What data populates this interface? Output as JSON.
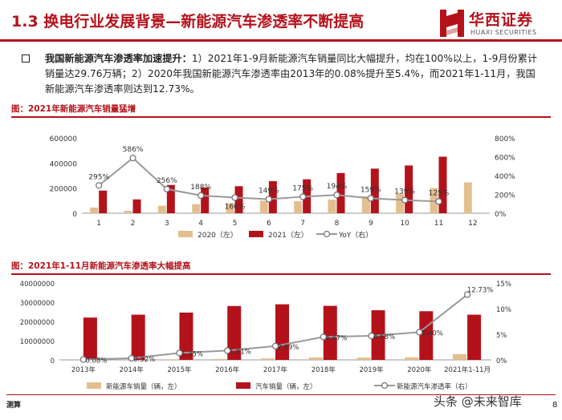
{
  "header": {
    "title": "1.3 换电行业发展背景—新能源汽车渗透率不断提高",
    "logo_cn": "华西证券",
    "logo_en": "HUAXI SECURITIES"
  },
  "bullet": {
    "bold": "我国新能源汽车渗透率加速提升：",
    "text": "1）2021年1-9月新能源汽车销量同比大幅提升，均在100%以上，1-9月份累计销量达29.76万辆；2）2020年我国新能源汽车渗透率由2013年的0.08%提升至5.4%，而2021年1-11月，我国新能源汽车渗透率则达到12.73%。"
  },
  "footer": {
    "source": "测算",
    "page": "8",
    "watermark": "头条 @未来智库"
  },
  "colors": {
    "brand_red": "#b4121b",
    "tan": "#e3bf8f",
    "gray_line": "#999999"
  },
  "chart_data": [
    {
      "type": "bar",
      "title": "图：2021年新能源汽车销量猛增",
      "categories": [
        "1",
        "2",
        "3",
        "4",
        "5",
        "6",
        "7",
        "8",
        "9",
        "10",
        "11",
        "12"
      ],
      "series": [
        {
          "name": "2020（左）",
          "kind": "bar",
          "color": "#e3bf8f",
          "values": [
            45000,
            19000,
            60000,
            72000,
            80000,
            100000,
            96000,
            108000,
            135000,
            158000,
            200000,
            245000
          ]
        },
        {
          "name": "2021（左）",
          "kind": "bar",
          "color": "#b4121b",
          "values": [
            180000,
            110000,
            225000,
            205000,
            215000,
            255000,
            270000,
            320000,
            355000,
            380000,
            450000,
            null
          ]
        },
        {
          "name": "YoY（右）",
          "kind": "line",
          "color": "#999999",
          "axis": "right",
          "values": [
            295,
            586,
            256,
            188,
            166,
            149,
            175,
            194,
            159,
            139,
            125,
            null
          ],
          "labels": [
            "295%",
            "586%",
            "256%",
            "188%",
            "166%",
            "149%",
            "175%",
            "194%",
            "159%",
            "139%",
            "125%",
            ""
          ]
        }
      ],
      "ylim_left": [
        0,
        600000
      ],
      "yticks_left": [
        "0",
        "200000",
        "400000",
        "600000"
      ],
      "ylim_right": [
        0,
        800
      ],
      "yticks_right": [
        "0%",
        "200%",
        "400%",
        "600%",
        "800%"
      ],
      "legend": "bottom"
    },
    {
      "type": "bar",
      "title": "图：2021年1-11月新能源汽车渗透率大幅提高",
      "categories": [
        "2013年",
        "2014年",
        "2015年",
        "2016年",
        "2017年",
        "2018年",
        "2019年",
        "2020年",
        "2021年1-11月"
      ],
      "series": [
        {
          "name": "新能源车销量（辆，左）",
          "kind": "bar",
          "color": "#e3bf8f",
          "values": [
            17600,
            75000,
            331000,
            507000,
            777000,
            1256000,
            1206000,
            1367000,
            2990000
          ]
        },
        {
          "name": "汽车销量（辆，左）",
          "kind": "bar",
          "color": "#b4121b",
          "values": [
            22000000,
            23500000,
            24600000,
            28000000,
            28900000,
            28100000,
            25800000,
            25300000,
            23500000
          ]
        },
        {
          "name": "新能源汽车渗透率（右）",
          "kind": "line",
          "color": "#999999",
          "axis": "right",
          "values": [
            0.08,
            0.32,
            1.35,
            1.81,
            2.69,
            4.47,
            4.68,
            5.4,
            12.73
          ],
          "labels": [
            "0.08%",
            "0.32%",
            "1.35%",
            "1.81%",
            "2.69%",
            "4.47%",
            "4.68%",
            "5.40%",
            "12.73%"
          ]
        }
      ],
      "ylim_left": [
        0,
        40000000
      ],
      "yticks_left": [
        "0",
        "10000000",
        "20000000",
        "30000000",
        "40000000"
      ],
      "ylim_right": [
        0,
        15
      ],
      "yticks_right": [
        "0%",
        "5%",
        "10%",
        "15%"
      ],
      "legend": "bottom"
    }
  ]
}
